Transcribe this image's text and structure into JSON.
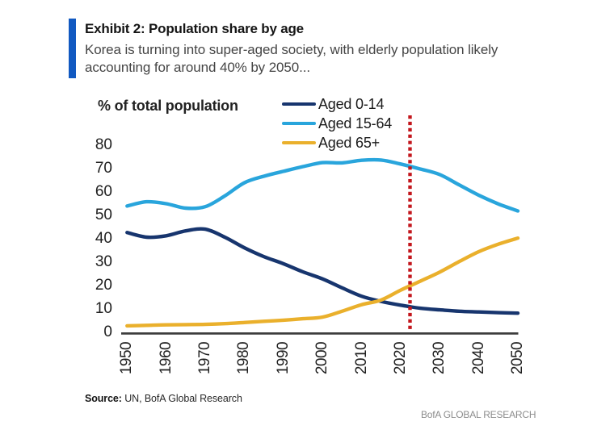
{
  "header": {
    "accent_color": "#1159c1",
    "title": "Exhibit 2: Population share by age",
    "subtitle_lines": [
      "Korea is turning into super-aged society, with elderly population likely",
      "accounting for around 40% by 2050..."
    ]
  },
  "chart_data": {
    "type": "line",
    "title": "Exhibit 2: Population share by age",
    "ylabel": "% of total population",
    "xlabel": "",
    "xlim": [
      1950,
      2050
    ],
    "ylim": [
      0,
      80
    ],
    "grid": false,
    "legend_position": "top",
    "x": [
      1950,
      1955,
      1960,
      1965,
      1970,
      1975,
      1980,
      1985,
      1990,
      1995,
      2000,
      2005,
      2010,
      2015,
      2020,
      2025,
      2030,
      2035,
      2040,
      2045,
      2050
    ],
    "x_ticks": [
      "1950",
      "1960",
      "1970",
      "1980",
      "1990",
      "2000",
      "2010",
      "2020",
      "2030",
      "2040",
      "2050"
    ],
    "y_ticks": [
      "0",
      "10",
      "20",
      "30",
      "40",
      "50",
      "60",
      "70",
      "80"
    ],
    "series": [
      {
        "name": "Aged 0-14",
        "color": "#17356e",
        "values": [
          42.6,
          40.6,
          41.2,
          43.3,
          44.0,
          40.6,
          36.1,
          32.3,
          29.3,
          25.8,
          22.8,
          19.0,
          15.4,
          13.2,
          11.6,
          10.3,
          9.6,
          9.0,
          8.7,
          8.4,
          8.2
        ]
      },
      {
        "name": "Aged 15-64",
        "color": "#29a5dc",
        "values": [
          53.9,
          55.7,
          54.9,
          53.0,
          53.6,
          58.2,
          63.8,
          66.6,
          68.7,
          70.7,
          72.4,
          72.3,
          73.4,
          73.5,
          71.8,
          69.7,
          67.3,
          62.9,
          58.5,
          54.8,
          51.8
        ]
      },
      {
        "name": "Aged 65+",
        "color": "#eab02c",
        "values": [
          2.8,
          3.0,
          3.2,
          3.3,
          3.4,
          3.7,
          4.2,
          4.7,
          5.2,
          5.8,
          6.5,
          9.0,
          11.8,
          13.8,
          18.0,
          21.8,
          25.7,
          30.2,
          34.4,
          37.6,
          40.2
        ]
      }
    ],
    "annotations": [
      {
        "type": "vline",
        "x": 2022.4,
        "style": "dotted",
        "color": "#c3161c"
      }
    ],
    "axis_color": "#3d3d3d"
  },
  "footer": {
    "source_label": "Source:",
    "source_text": " UN, BofA Global Research",
    "brand": "BofA GLOBAL RESEARCH"
  }
}
